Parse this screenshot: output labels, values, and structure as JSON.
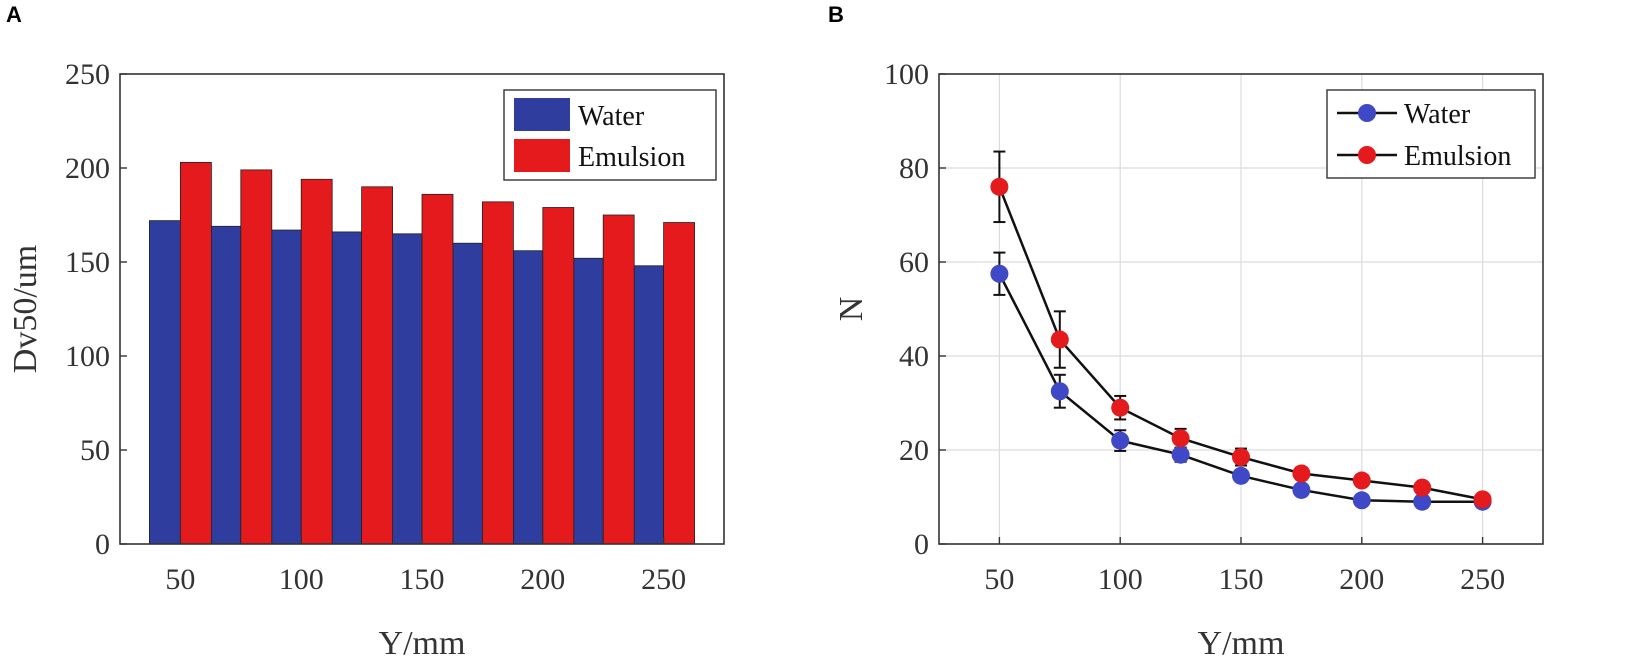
{
  "chart_data": [
    {
      "panel": "A",
      "type": "bar",
      "categories": [
        50,
        75,
        100,
        125,
        150,
        175,
        200,
        225,
        250
      ],
      "x_tick_labels": [
        "50",
        "100",
        "150",
        "200",
        "250"
      ],
      "y_tick_labels": [
        "0",
        "50",
        "100",
        "150",
        "200",
        "250"
      ],
      "series": [
        {
          "name": "Water",
          "color": "#2e3d9e",
          "values": [
            172,
            169,
            167,
            166,
            165,
            160,
            156,
            152,
            148
          ]
        },
        {
          "name": "Emulsion",
          "color": "#e41a1c",
          "values": [
            203,
            199,
            194,
            190,
            186,
            182,
            179,
            175,
            171
          ]
        }
      ],
      "xlabel": "Y/mm",
      "ylabel": "Dv50/um",
      "xlim": [
        25,
        275
      ],
      "ylim": [
        0,
        250
      ],
      "legend": "top-right",
      "grid": false
    },
    {
      "panel": "B",
      "type": "line",
      "x": [
        50,
        75,
        100,
        125,
        150,
        175,
        200,
        225,
        250
      ],
      "x_tick_labels": [
        "50",
        "100",
        "150",
        "200",
        "250"
      ],
      "y_tick_labels": [
        "0",
        "20",
        "40",
        "60",
        "80",
        "100"
      ],
      "series": [
        {
          "name": "Water",
          "color": "#3f48c6",
          "values": [
            57.5,
            32.5,
            22,
            19,
            14.5,
            11.5,
            9.3,
            9,
            9
          ],
          "errors": [
            4.5,
            3.5,
            2.2,
            1.5,
            1.2,
            1.0,
            0.8,
            0.8,
            0.8
          ]
        },
        {
          "name": "Emulsion",
          "color": "#e41a1c",
          "values": [
            76,
            43.5,
            29,
            22.5,
            18.5,
            15,
            13.5,
            12,
            9.5
          ],
          "errors": [
            7.5,
            6,
            2.5,
            2,
            1.8,
            1.3,
            1.2,
            1.0,
            0.8
          ]
        }
      ],
      "xlabel": "Y/mm",
      "ylabel": "N",
      "xlim": [
        25,
        275
      ],
      "ylim": [
        0,
        100
      ],
      "legend": "top-right",
      "grid": true
    }
  ]
}
